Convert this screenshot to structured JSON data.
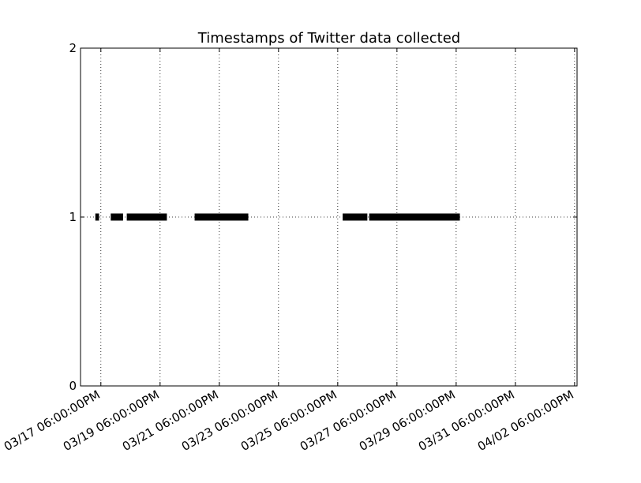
{
  "chart_data": {
    "type": "scatter",
    "title": "Timestamps of Twitter data collected",
    "xlabel": "",
    "ylabel": "",
    "x_axis": {
      "scale": "time",
      "range_hours_from_first_tick": [
        -16.5,
        386
      ],
      "tick_labels": [
        "03/17 06:00:00PM",
        "03/19 06:00:00PM",
        "03/21 06:00:00PM",
        "03/23 06:00:00PM",
        "03/25 06:00:00PM",
        "03/27 06:00:00PM",
        "03/29 06:00:00PM",
        "03/31 06:00:00PM",
        "04/02 06:00:00PM"
      ]
    },
    "y_axis": {
      "range": [
        0,
        2
      ],
      "tick_labels": [
        "0",
        "1",
        "2"
      ]
    },
    "grid": true,
    "legend": "none",
    "series": [
      {
        "y": 1,
        "color": "#000000",
        "segments": [
          {
            "start": "03/17 01:30PM",
            "end": "03/17 04:30PM"
          },
          {
            "start": "03/18 02:00AM",
            "end": "03/18 12:00PM"
          },
          {
            "start": "03/18 03:00PM",
            "end": "03/19 11:30PM"
          },
          {
            "start": "03/20 10:00PM",
            "end": "03/22 05:30PM"
          },
          {
            "start": "03/25 10:00PM",
            "end": "03/26 06:00PM"
          },
          {
            "start": "03/26 07:30PM",
            "end": "03/29 09:00PM"
          },
          {
            "start": "03/29 03:00PM",
            "end": "03/29 03:30PM"
          }
        ]
      }
    ]
  }
}
